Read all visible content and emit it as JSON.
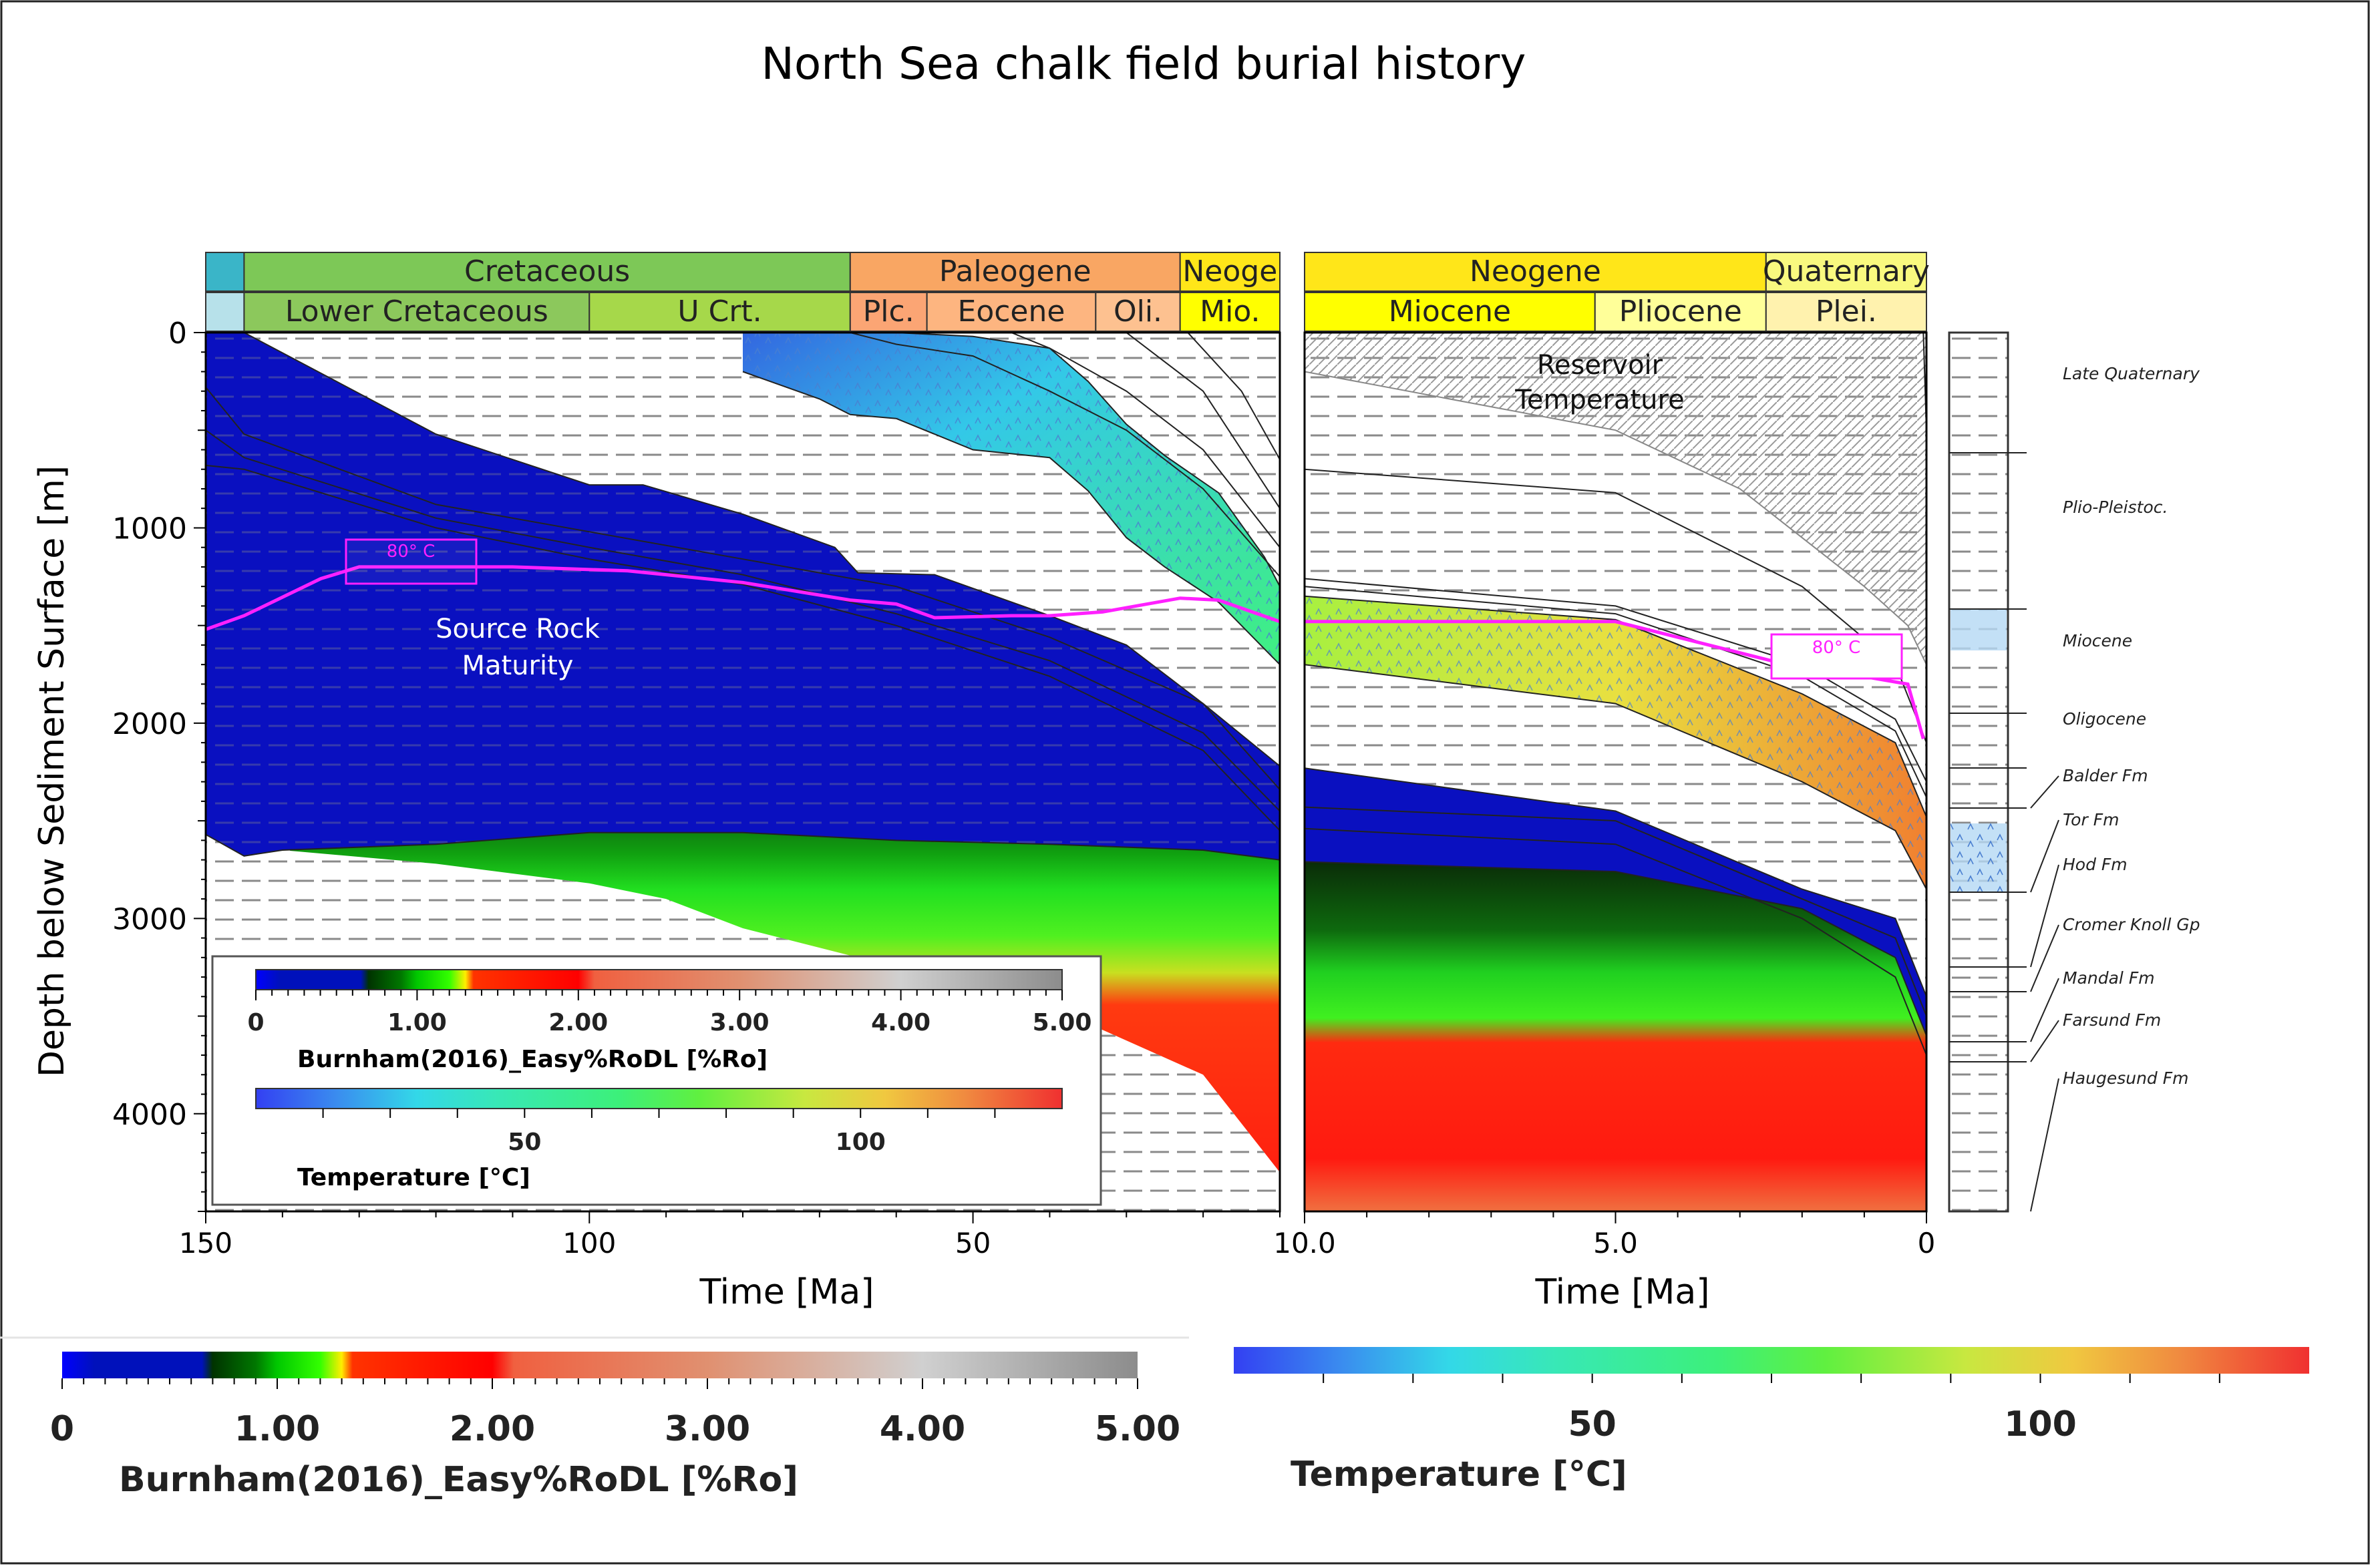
{
  "title": "North Sea chalk field burial history",
  "left_panel": {
    "periods": [
      {
        "label": "",
        "color": "#3ab5c8",
        "from": 150,
        "to": 145
      },
      {
        "label": "Cretaceous",
        "color": "#7dc857",
        "from": 145,
        "to": 66
      },
      {
        "label": "Paleogene",
        "color": "#f9a663",
        "from": 66,
        "to": 23
      },
      {
        "label": "Neoge",
        "color": "#ffe619",
        "from": 23,
        "to": 10
      }
    ],
    "epochs": [
      {
        "label": "",
        "color": "#b7e1ea",
        "from": 150,
        "to": 145
      },
      {
        "label": "Lower Cretaceous",
        "color": "#8cc85c",
        "from": 145,
        "to": 100
      },
      {
        "label": "U Crt.",
        "color": "#a6d84a",
        "from": 100,
        "to": 66
      },
      {
        "label": "Plc.",
        "color": "#fba574",
        "from": 66,
        "to": 56
      },
      {
        "label": "Eocene",
        "color": "#fdb580",
        "from": 56,
        "to": 34
      },
      {
        "label": "Oli.",
        "color": "#fdc190",
        "from": 34,
        "to": 23
      },
      {
        "label": "Mio.",
        "color": "#ffff00",
        "from": 23,
        "to": 10
      }
    ],
    "annotations": {
      "source_rock_line1": "Source Rock",
      "source_rock_line2": "Maturity",
      "isotherm_label": "80° C"
    },
    "inset_legend": {
      "ro_ticks": [
        "0",
        "1.00",
        "2.00",
        "3.00",
        "4.00",
        "5.00"
      ],
      "ro_title": "Burnham(2016)_Easy%RoDL [%Ro]",
      "temp_ticks": [
        "50",
        "100"
      ],
      "temp_title": "Temperature [°C]"
    }
  },
  "right_panel": {
    "periods": [
      {
        "label": "Neogene",
        "color": "#ffe619",
        "from": 10,
        "to": 2.58
      },
      {
        "label": "Quaternary",
        "color": "#f9f97f",
        "from": 2.58,
        "to": 0
      }
    ],
    "epochs": [
      {
        "label": "Miocene",
        "color": "#ffff00",
        "from": 10,
        "to": 5.33
      },
      {
        "label": "Pliocene",
        "color": "#ffff99",
        "from": 5.33,
        "to": 2.58
      },
      {
        "label": "Plei.",
        "color": "#fff2ae",
        "from": 2.58,
        "to": 0
      }
    ],
    "annotations": {
      "reservoir_line1": "Reservoir",
      "reservoir_line2": "Temperature",
      "isotherm_label": "80° C"
    }
  },
  "formations": [
    "Late Quaternary",
    "Plio-Pleistoc.",
    "Miocene",
    "Oligocene",
    "Balder Fm",
    "Tor Fm",
    "Hod Fm",
    "Cromer Knoll Gp",
    "Mandal Fm",
    "Farsund Fm",
    "Haugesund Fm"
  ],
  "bottom_legend": {
    "ro_ticks": [
      "0",
      "1.00",
      "2.00",
      "3.00",
      "4.00",
      "5.00"
    ],
    "ro_title": "Burnham(2016)_Easy%RoDL [%Ro]",
    "temp_ticks": [
      "50",
      "100"
    ],
    "temp_title": "Temperature [°C]"
  },
  "chart_data": [
    {
      "type": "area",
      "panel": "left",
      "xlabel": "Time [Ma]",
      "ylabel": "Depth below Sediment Surface [m]",
      "xlim": [
        150,
        10
      ],
      "ylim": [
        4500,
        0
      ],
      "x_ticks": [
        "150",
        "100",
        "50",
        "10.0"
      ],
      "y_ticks": [
        "0",
        "1000",
        "2000",
        "3000",
        "4000"
      ],
      "isotherm_80C": {
        "x": [
          150,
          145,
          135,
          130,
          110,
          95,
          80,
          66,
          60,
          55,
          45,
          40,
          33,
          23,
          18,
          10
        ],
        "y": [
          1520,
          1450,
          1260,
          1200,
          1200,
          1220,
          1280,
          1370,
          1390,
          1460,
          1450,
          1450,
          1430,
          1360,
          1370,
          1480
        ]
      },
      "maturity_top": {
        "x": [
          150,
          135,
          115,
          100,
          93,
          80,
          68,
          65,
          55,
          40,
          30,
          20,
          10
        ],
        "y": [
          0,
          0,
          0,
          0,
          0,
          0,
          0,
          0,
          0,
          0,
          0,
          0,
          2200
        ]
      },
      "source_rock_top": {
        "x": [
          150,
          145,
          120,
          100,
          93,
          80,
          68,
          65,
          55,
          40,
          30,
          20,
          10
        ],
        "y": [
          0,
          0,
          520,
          780,
          780,
          930,
          1100,
          1230,
          1240,
          1450,
          1600,
          1900,
          2220
        ]
      },
      "source_rock_base": {
        "x": [
          150,
          145,
          140,
          120,
          100,
          80,
          60,
          40,
          20,
          10
        ],
        "y": [
          2570,
          2680,
          2650,
          2620,
          2560,
          2560,
          2600,
          2620,
          2650,
          2700
        ]
      },
      "oil_window_top": {
        "x": [
          140,
          130,
          115,
          100,
          90,
          70,
          55,
          40,
          25,
          10
        ],
        "y": [
          2680,
          2400,
          2240,
          2180,
          2160,
          2170,
          2200,
          2240,
          2330,
          2560
        ]
      },
      "reservoir_chalk_top": {
        "x": [
          100,
          90,
          80,
          70,
          66,
          60,
          50,
          40,
          35,
          30,
          25,
          18,
          12,
          10
        ],
        "y": [
          0,
          0,
          0,
          0,
          0,
          0,
          20,
          80,
          250,
          470,
          630,
          820,
          1150,
          1300
        ]
      },
      "reservoir_chalk_base": {
        "x": [
          80,
          70,
          66,
          60,
          50,
          40,
          35,
          30,
          25,
          18,
          12,
          10
        ],
        "y": [
          200,
          340,
          420,
          440,
          600,
          640,
          810,
          1050,
          1200,
          1380,
          1620,
          1700
        ]
      }
    },
    {
      "type": "area",
      "panel": "right",
      "xlabel": "Time [Ma]",
      "xlim": [
        10,
        0
      ],
      "ylim": [
        4500,
        0
      ],
      "x_ticks": [
        "10.0",
        "5.0",
        "0"
      ],
      "isotherm_80C": {
        "x": [
          10,
          5,
          2.5,
          0.3,
          0.05
        ],
        "y": [
          1480,
          1480,
          1680,
          1800,
          2080
        ]
      },
      "reservoir_temperature_zone": {
        "x": [
          10,
          7,
          5,
          3,
          1,
          0.3,
          0
        ],
        "top": [
          0,
          0,
          0,
          0,
          0,
          0,
          0
        ],
        "base": [
          200,
          380,
          500,
          800,
          1300,
          1500,
          1700
        ]
      },
      "chalk_top": {
        "x": [
          10,
          5,
          2,
          0.5,
          0
        ],
        "y": [
          1350,
          1470,
          1850,
          2100,
          2480
        ]
      },
      "chalk_base": {
        "x": [
          10,
          5,
          2,
          0.5,
          0
        ],
        "y": [
          1700,
          1900,
          2300,
          2550,
          2850
        ]
      },
      "source_rock_top": {
        "x": [
          10,
          5,
          2,
          0.5,
          0
        ],
        "y": [
          2230,
          2450,
          2850,
          3000,
          3400
        ]
      },
      "source_rock_base": {
        "x": [
          10,
          5,
          2,
          0.5,
          0
        ],
        "y": [
          2710,
          2760,
          2950,
          3200,
          3600
        ]
      }
    }
  ]
}
